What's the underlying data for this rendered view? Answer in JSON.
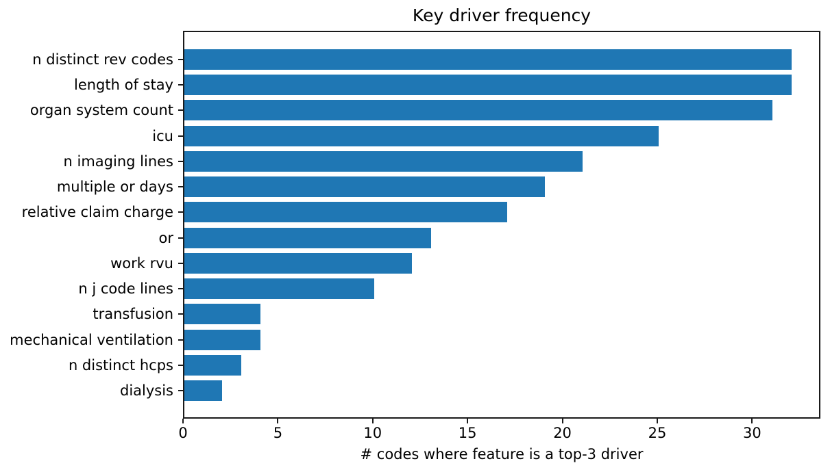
{
  "chart_data": {
    "type": "bar",
    "orientation": "horizontal",
    "title": "Key driver frequency",
    "xlabel": "# codes where feature is a top-3 driver",
    "ylabel": "",
    "categories": [
      "n distinct rev codes",
      "length of stay",
      "organ system count",
      "icu",
      "n imaging lines",
      "multiple or days",
      "relative claim charge",
      "or",
      "work rvu",
      "n j code lines",
      "transfusion",
      "mechanical ventilation",
      "n distinct hcps",
      "dialysis"
    ],
    "values": [
      32,
      32,
      31,
      25,
      21,
      19,
      17,
      13,
      12,
      10,
      4,
      4,
      3,
      2
    ],
    "xlim": [
      0,
      33.6
    ],
    "xticks": [
      0,
      5,
      10,
      15,
      20,
      25,
      30
    ],
    "grid": false,
    "legend": null,
    "bar_color": "#1f77b4",
    "spine_color": "#1a1a1a",
    "text_color": "#000000",
    "background_color": "#ffffff"
  }
}
